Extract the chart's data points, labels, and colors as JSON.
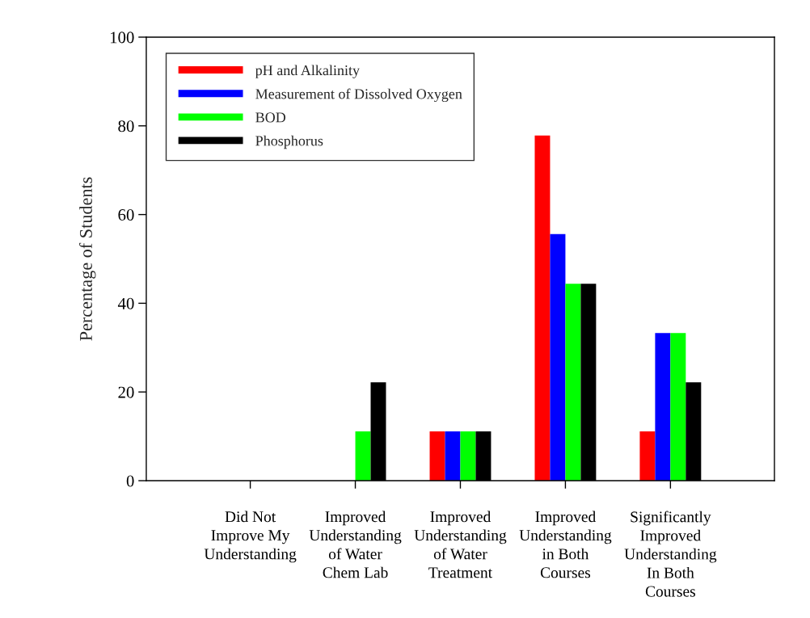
{
  "chart_data": {
    "type": "bar",
    "categories": [
      "Did Not\nImprove My\nUnderstanding",
      "Improved\nUnderstanding\nof Water\nChem Lab",
      "Improved\nUnderstanding\nof Water\nTreatment",
      "Improved\nUnderstanding\nin Both\nCourses",
      "Significantly\nImproved\nUnderstanding\nIn Both\nCourses"
    ],
    "ylabel": "Percentage of Students",
    "ylim": [
      0,
      100
    ],
    "yticks": [
      0,
      20,
      40,
      60,
      80,
      100
    ],
    "grid": false,
    "legend": "top left",
    "series": [
      {
        "name": "pH and Alkalinity",
        "color": "#ff0000",
        "values": [
          0,
          0,
          11.1,
          77.8,
          11.1
        ]
      },
      {
        "name": "Measurement of Dissolved Oxygen",
        "color": "#0000ff",
        "values": [
          0,
          0,
          11.1,
          55.6,
          33.3
        ]
      },
      {
        "name": "BOD",
        "color": "#00ff00",
        "values": [
          0,
          11.1,
          11.1,
          44.4,
          33.3
        ]
      },
      {
        "name": "Phosphorus",
        "color": "#000000",
        "values": [
          0,
          22.2,
          11.1,
          44.4,
          22.2
        ]
      }
    ]
  }
}
